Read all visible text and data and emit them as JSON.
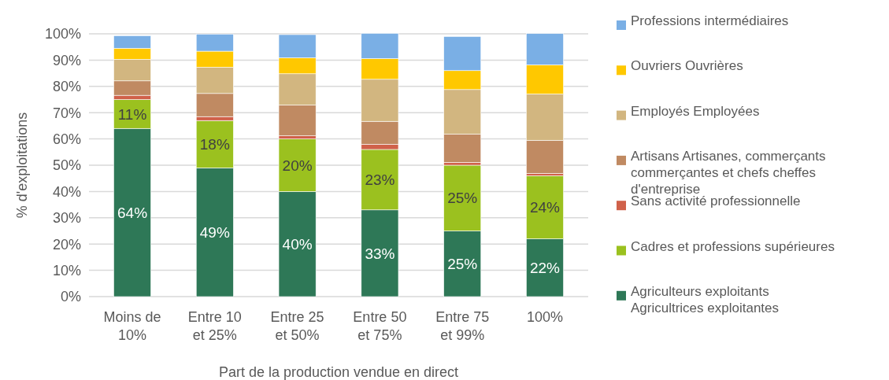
{
  "chart_data": {
    "type": "bar",
    "stacked": true,
    "xlabel": "Part de la production vendue en direct",
    "ylabel": "% d'exploitations",
    "categories": [
      "Moins de 10%",
      "Entre 10 et 25%",
      "Entre 25 et 50%",
      "Entre 50 et 75%",
      "Entre 75 et 99%",
      "100%"
    ],
    "series": [
      {
        "name": " Agriculteurs exploitants Agricultrices exploitantes",
        "color": "#2e7857",
        "values": [
          64,
          49,
          40,
          33,
          25,
          22
        ],
        "value_labels": [
          "64%",
          "49%",
          "40%",
          "33%",
          "25%",
          "22%"
        ]
      },
      {
        "name": "Cadres et professions supérieures",
        "color": "#9bc11f",
        "values": [
          11,
          18,
          20,
          23,
          25,
          24
        ],
        "value_labels": [
          "11%",
          "18%",
          "20%",
          "23%",
          "25%",
          "24%"
        ]
      },
      {
        "name": "Sans activité professionnelle",
        "color": "#d0614a",
        "values": [
          1.6,
          1.5,
          1.2,
          2,
          1.1,
          0.9
        ]
      },
      {
        "name": "Artisans Artisanes, commerçants commerçantes et chefs cheffes d'entreprise",
        "color": "#c08a62",
        "values": [
          5.5,
          8.8,
          11.7,
          8.7,
          10.7,
          12.6
        ]
      },
      {
        "name": "Employés Employées",
        "color": "#d2b680",
        "values": [
          8.2,
          10,
          11.9,
          16,
          17,
          17.6
        ]
      },
      {
        "name": "Ouvriers Ouvrières",
        "color": "#ffc800",
        "values": [
          4.2,
          6.1,
          6.1,
          7.9,
          7.2,
          11.1
        ]
      },
      {
        "name": "Professions intermédiaires",
        "color": "#7aafe5",
        "values": [
          4.8,
          6.5,
          8.8,
          9.6,
          13,
          11.9
        ]
      }
    ],
    "ylim": [
      0,
      100
    ],
    "yticks": [
      {
        "value": 0,
        "label": "0%"
      },
      {
        "value": 10,
        "label": "10%"
      },
      {
        "value": 20,
        "label": "20%"
      },
      {
        "value": 30,
        "label": "30%"
      },
      {
        "value": 40,
        "label": "40%"
      },
      {
        "value": 50,
        "label": "50%"
      },
      {
        "value": 60,
        "label": "60%"
      },
      {
        "value": 70,
        "label": "70%"
      },
      {
        "value": 80,
        "label": "80%"
      },
      {
        "value": 90,
        "label": "90%"
      },
      {
        "value": 100,
        "label": "100%"
      }
    ],
    "grid": "y",
    "legend": "right"
  }
}
